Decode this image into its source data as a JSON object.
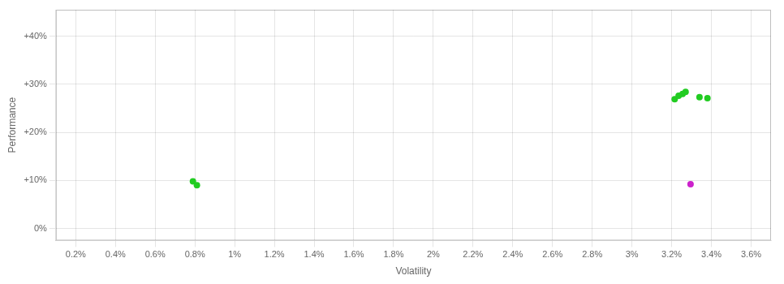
{
  "chart_data": {
    "type": "scatter",
    "xlabel": "Volatility",
    "ylabel": "Performance",
    "xlim": [
      0.001,
      0.037
    ],
    "ylim": [
      -0.025,
      0.455
    ],
    "xticks": [
      {
        "value": 0.002,
        "label": "0.2%"
      },
      {
        "value": 0.004,
        "label": "0.4%"
      },
      {
        "value": 0.006,
        "label": "0.6%"
      },
      {
        "value": 0.008,
        "label": "0.8%"
      },
      {
        "value": 0.01,
        "label": "1%"
      },
      {
        "value": 0.012,
        "label": "1.2%"
      },
      {
        "value": 0.014,
        "label": "1.4%"
      },
      {
        "value": 0.016,
        "label": "1.6%"
      },
      {
        "value": 0.018,
        "label": "1.8%"
      },
      {
        "value": 0.02,
        "label": "2%"
      },
      {
        "value": 0.022,
        "label": "2.2%"
      },
      {
        "value": 0.024,
        "label": "2.4%"
      },
      {
        "value": 0.026,
        "label": "2.6%"
      },
      {
        "value": 0.028,
        "label": "2.8%"
      },
      {
        "value": 0.03,
        "label": "3%"
      },
      {
        "value": 0.032,
        "label": "3.2%"
      },
      {
        "value": 0.034,
        "label": "3.4%"
      },
      {
        "value": 0.036,
        "label": "3.6%"
      }
    ],
    "yticks": [
      {
        "value": 0.0,
        "label": "0%"
      },
      {
        "value": 0.1,
        "label": "+10%"
      },
      {
        "value": 0.2,
        "label": "+20%"
      },
      {
        "value": 0.3,
        "label": "+30%"
      },
      {
        "value": 0.4,
        "label": "+40%"
      }
    ],
    "grid": true,
    "series": [
      {
        "color": "#22cc22",
        "x": [
          0.0079,
          0.0081,
          0.03215,
          0.03235,
          0.03255,
          0.0327,
          0.0334,
          0.0338
        ],
        "values": [
          0.098,
          0.09,
          0.269,
          0.276,
          0.28,
          0.284,
          0.273,
          0.271
        ]
      },
      {
        "color": "#cc22cc",
        "x": [
          0.03295
        ],
        "values": [
          0.092
        ]
      }
    ]
  }
}
